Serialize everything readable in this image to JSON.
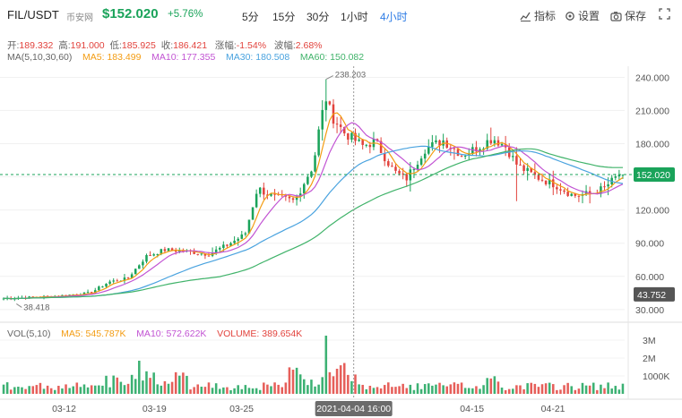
{
  "header": {
    "pair": "FIL/USDT",
    "exchange": "币安网",
    "price": "$152.020",
    "change": "+5.76%",
    "intervals": [
      "5分",
      "15分",
      "30分",
      "1小时",
      "4小时"
    ],
    "active_interval": 4,
    "tools": {
      "indicator": "指标",
      "settings": "设置",
      "save": "保存"
    }
  },
  "ohlc": {
    "open_label": "开:",
    "open": "189.332",
    "high_label": "高:",
    "high": "191.000",
    "low_label": "低:",
    "low": "185.925",
    "close_label": "收:",
    "close": "186.421",
    "change_label": "涨幅:",
    "change": "-1.54%",
    "amp_label": "波幅:",
    "amp": "2.68%"
  },
  "ma_legend": {
    "title": "MA(5,10,30,60)",
    "ma5": "MA5: 183.499",
    "ma10": "MA10: 177.355",
    "ma30": "MA30: 180.508",
    "ma60": "MA60: 150.082"
  },
  "vol_legend": {
    "title": "VOL(5,10)",
    "ma5": "MA5: 545.787K",
    "ma10": "MA10: 572.622K",
    "volume": "VOLUME: 389.654K"
  },
  "colors": {
    "up": "#1aa35a",
    "down": "#e2433d",
    "ma5": "#f39c12",
    "ma10": "#c254d3",
    "ma30": "#4aa3df",
    "ma60": "#40b36a",
    "accent": "#2c7be5"
  },
  "chart_data": {
    "type": "candlestick",
    "price_axis": {
      "ticks": [
        240,
        210,
        180,
        150,
        120,
        90,
        60,
        30
      ],
      "tick_labels": [
        "240.000",
        "210.000",
        "180.000",
        "150.000",
        "120.000",
        "90.000",
        "60.000",
        "30.000"
      ],
      "ylim": [
        25,
        250
      ]
    },
    "volume_axis": {
      "ticks": [
        3000,
        2000,
        1000
      ],
      "tick_labels": [
        "3M",
        "2M",
        "1000K"
      ],
      "ylim": [
        0,
        3600
      ]
    },
    "x_labels": [
      "03-12",
      "03-19",
      "03-25",
      "2021-04-04 16:00",
      "04-15",
      "04-21"
    ],
    "x_label_positions": [
      0.1,
      0.245,
      0.385,
      0.565,
      0.755,
      0.885
    ],
    "crosshair_label": "2021-04-04 16:00",
    "last_price": "152.020",
    "last_price_value": 152.02,
    "prev_marker": "43.752",
    "prev_marker_value": 43.752,
    "max_annotation": "238.203",
    "max_value": 238.203,
    "min_annotation": "38.418",
    "min_value": 38.418,
    "close_keypoints": [
      [
        0,
        40
      ],
      [
        0.08,
        42
      ],
      [
        0.14,
        45
      ],
      [
        0.17,
        55
      ],
      [
        0.2,
        58
      ],
      [
        0.23,
        78
      ],
      [
        0.26,
        84
      ],
      [
        0.29,
        83
      ],
      [
        0.33,
        80
      ],
      [
        0.36,
        88
      ],
      [
        0.39,
        98
      ],
      [
        0.41,
        140
      ],
      [
        0.43,
        133
      ],
      [
        0.47,
        128
      ],
      [
        0.49,
        150
      ],
      [
        0.5,
        160
      ],
      [
        0.51,
        195
      ],
      [
        0.52,
        222
      ],
      [
        0.53,
        205
      ],
      [
        0.55,
        190
      ],
      [
        0.58,
        178
      ],
      [
        0.6,
        182
      ],
      [
        0.63,
        155
      ],
      [
        0.65,
        148
      ],
      [
        0.68,
        175
      ],
      [
        0.71,
        183
      ],
      [
        0.74,
        170
      ],
      [
        0.76,
        175
      ],
      [
        0.79,
        185
      ],
      [
        0.81,
        178
      ],
      [
        0.83,
        160
      ],
      [
        0.86,
        150
      ],
      [
        0.89,
        143
      ],
      [
        0.92,
        133
      ],
      [
        0.95,
        135
      ],
      [
        0.97,
        140
      ],
      [
        1.0,
        155
      ]
    ]
  }
}
